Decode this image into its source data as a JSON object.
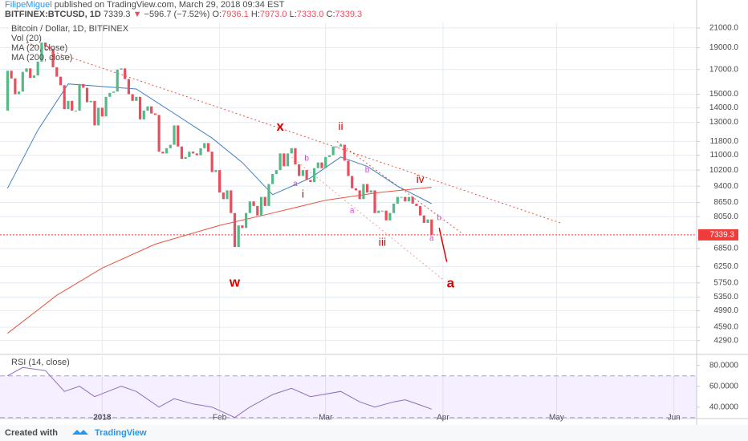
{
  "header": {
    "author": "FilipeMiguel",
    "published": "published on TradingView.com, March 29, 2018 09:34 EST",
    "symbol": "BITFINEX:BTCUSD, 1D",
    "arrow": "▼",
    "change": "−596.7 (−7.52%)",
    "ohlc": [
      {
        "label": "O:",
        "value": "7936.1"
      },
      {
        "label": "H:",
        "value": "7973.0"
      },
      {
        "label": "L:",
        "value": "7333.0"
      },
      {
        "label": "C:",
        "value": "7339.3"
      }
    ]
  },
  "legend": {
    "title": "Bitcoin / Dollar, 1D, BITFINEX",
    "volume": "Vol (20)"
  },
  "footer": {
    "created": "Created with",
    "brand": "TradingView"
  },
  "chart_data": {
    "type": "candlestick",
    "log_scale": true,
    "grid": true,
    "up_color": "#53b987",
    "down_color": "#eb4d5c",
    "xlim": [
      "2017-12-05",
      "2018-06-07"
    ],
    "xticks": [
      {
        "value": "2018-01-01",
        "label": "2018"
      },
      {
        "value": "2018-02-01",
        "label": "Feb"
      },
      {
        "value": "2018-03-01",
        "label": "Mar"
      },
      {
        "value": "2018-04-01",
        "label": "Apr"
      },
      {
        "value": "2018-05-01",
        "label": "May"
      },
      {
        "value": "2018-06-01",
        "label": "Jun"
      }
    ],
    "ylim": [
      4030,
      21600
    ],
    "yticks": [
      {
        "value": 21000,
        "label": "21000.0"
      },
      {
        "value": 19000,
        "label": "19000.0"
      },
      {
        "value": 17000,
        "label": "17000.0"
      },
      {
        "value": 15000,
        "label": "15000.0"
      },
      {
        "value": 14000,
        "label": "14000.0"
      },
      {
        "value": 13000,
        "label": "13000.0"
      },
      {
        "value": 11800,
        "label": "11800.0"
      },
      {
        "value": 11000,
        "label": "11000.0"
      },
      {
        "value": 10200,
        "label": "10200.0"
      },
      {
        "value": 9400,
        "label": "9400.0"
      },
      {
        "value": 8650,
        "label": "8650.0"
      },
      {
        "value": 8050,
        "label": "8050.0"
      },
      {
        "value": 6850,
        "label": "6850.0"
      },
      {
        "value": 6250,
        "label": "6250.0"
      },
      {
        "value": 5750,
        "label": "5750.0"
      },
      {
        "value": 5350,
        "label": "5350.0"
      },
      {
        "value": 4990,
        "label": "4990.0"
      },
      {
        "value": 4590,
        "label": "4590.0"
      },
      {
        "value": 4290,
        "label": "4290.0"
      }
    ],
    "last_price": 7339.3,
    "last_color": "#f03b3b",
    "candles": {
      "x": [
        "2017-12-07",
        "2017-12-08",
        "2017-12-09",
        "2017-12-10",
        "2017-12-11",
        "2017-12-12",
        "2017-12-13",
        "2017-12-14",
        "2017-12-15",
        "2017-12-16",
        "2017-12-17",
        "2017-12-18",
        "2017-12-19",
        "2017-12-20",
        "2017-12-21",
        "2017-12-22",
        "2017-12-23",
        "2017-12-24",
        "2017-12-25",
        "2017-12-26",
        "2017-12-27",
        "2017-12-28",
        "2017-12-29",
        "2017-12-30",
        "2017-12-31",
        "2018-01-01",
        "2018-01-02",
        "2018-01-03",
        "2018-01-04",
        "2018-01-05",
        "2018-01-06",
        "2018-01-07",
        "2018-01-08",
        "2018-01-09",
        "2018-01-10",
        "2018-01-11",
        "2018-01-12",
        "2018-01-13",
        "2018-01-14",
        "2018-01-15",
        "2018-01-16",
        "2018-01-17",
        "2018-01-18",
        "2018-01-19",
        "2018-01-20",
        "2018-01-21",
        "2018-01-22",
        "2018-01-23",
        "2018-01-24",
        "2018-01-25",
        "2018-01-26",
        "2018-01-27",
        "2018-01-28",
        "2018-01-29",
        "2018-01-30",
        "2018-01-31",
        "2018-02-01",
        "2018-02-02",
        "2018-02-03",
        "2018-02-04",
        "2018-02-05",
        "2018-02-06",
        "2018-02-07",
        "2018-02-08",
        "2018-02-09",
        "2018-02-10",
        "2018-02-11",
        "2018-02-12",
        "2018-02-13",
        "2018-02-14",
        "2018-02-15",
        "2018-02-16",
        "2018-02-17",
        "2018-02-18",
        "2018-02-19",
        "2018-02-20",
        "2018-02-21",
        "2018-02-22",
        "2018-02-23",
        "2018-02-24",
        "2018-02-25",
        "2018-02-26",
        "2018-02-27",
        "2018-02-28",
        "2018-03-01",
        "2018-03-02",
        "2018-03-03",
        "2018-03-04",
        "2018-03-05",
        "2018-03-06",
        "2018-03-07",
        "2018-03-08",
        "2018-03-09",
        "2018-03-10",
        "2018-03-11",
        "2018-03-12",
        "2018-03-13",
        "2018-03-14",
        "2018-03-15",
        "2018-03-16",
        "2018-03-17",
        "2018-03-18",
        "2018-03-19",
        "2018-03-20",
        "2018-03-21",
        "2018-03-22",
        "2018-03-23",
        "2018-03-24",
        "2018-03-25",
        "2018-03-26",
        "2018-03-27",
        "2018-03-28",
        "2018-03-29"
      ],
      "open": [
        13800,
        16900,
        16250,
        15000,
        15200,
        16800,
        17100,
        16300,
        16500,
        17700,
        19500,
        19100,
        18900,
        17200,
        16400,
        15700,
        13900,
        14500,
        13800,
        13800,
        15800,
        15500,
        14400,
        14500,
        12800,
        14000,
        13400,
        14800,
        15100,
        15200,
        17000,
        17100,
        16200,
        15000,
        14500,
        14800,
        13200,
        13800,
        14100,
        13600,
        13500,
        11200,
        11100,
        11400,
        11600,
        12800,
        11500,
        10800,
        10900,
        11200,
        11100,
        11000,
        11400,
        11700,
        11200,
        10100,
        10200,
        9100,
        8800,
        9200,
        8200,
        6900,
        7700,
        7600,
        8200,
        8700,
        8500,
        8100,
        8900,
        8500,
        9500,
        10000,
        10200,
        11100,
        10400,
        11100,
        11400,
        10500,
        9900,
        10200,
        9700,
        9600,
        10300,
        10600,
        10300,
        10900,
        11000,
        11500,
        11500,
        11600,
        10700,
        9900,
        9300,
        9200,
        8800,
        9500,
        9100,
        9200,
        8200,
        8300,
        8300,
        7900,
        8200,
        8600,
        8900,
        8900,
        8700,
        8900,
        8600,
        8500,
        8100,
        7800,
        7936.1
      ],
      "close": [
        16900,
        16250,
        15000,
        15200,
        16800,
        17100,
        16300,
        16500,
        17700,
        19500,
        19100,
        18900,
        17200,
        16400,
        15700,
        13900,
        14500,
        13800,
        13800,
        15800,
        15500,
        14400,
        14500,
        12800,
        14000,
        13400,
        14800,
        15100,
        15200,
        17000,
        17100,
        16200,
        15000,
        14500,
        14800,
        13200,
        13800,
        14100,
        13600,
        13500,
        11200,
        11100,
        11400,
        11600,
        12800,
        11500,
        10800,
        10900,
        11200,
        11100,
        11000,
        11400,
        11700,
        11200,
        10100,
        10200,
        9100,
        8800,
        9200,
        8200,
        6900,
        7700,
        7600,
        8200,
        8700,
        8500,
        8100,
        8900,
        8500,
        9500,
        10000,
        10200,
        11100,
        10400,
        11100,
        11400,
        10500,
        9900,
        10200,
        9700,
        9600,
        10300,
        10600,
        10300,
        10900,
        11000,
        11500,
        11500,
        11600,
        10700,
        9900,
        9300,
        9200,
        8800,
        9500,
        9100,
        9200,
        8200,
        8300,
        8300,
        7900,
        8200,
        8600,
        8900,
        8900,
        8700,
        8900,
        8600,
        8500,
        8100,
        7800,
        7936.1,
        7339.3
      ]
    },
    "series": [
      {
        "name": "MA (20, close)",
        "color": "#3f7fbf",
        "x": [
          "2017-12-07",
          "2017-12-15",
          "2017-12-23",
          "2018-01-01",
          "2018-01-10",
          "2018-01-20",
          "2018-01-30",
          "2018-02-07",
          "2018-02-15",
          "2018-02-25",
          "2018-03-05",
          "2018-03-12",
          "2018-03-20",
          "2018-03-29"
        ],
        "values": [
          9300,
          12500,
          15800,
          15600,
          15400,
          13600,
          12000,
          10600,
          9000,
          9800,
          10900,
          10400,
          9400,
          8600
        ]
      },
      {
        "name": "MA (200, close)",
        "color": "#e8533f",
        "x": [
          "2017-12-07",
          "2017-12-20",
          "2018-01-01",
          "2018-01-15",
          "2018-02-01",
          "2018-02-15",
          "2018-03-01",
          "2018-03-15",
          "2018-03-29"
        ],
        "values": [
          4450,
          5400,
          6200,
          7000,
          7700,
          8200,
          8750,
          9100,
          9350
        ]
      }
    ],
    "trendlines": [
      {
        "x": [
          "2017-12-12",
          "2018-05-02"
        ],
        "y": [
          19500,
          7800
        ],
        "color": "#e8533f",
        "style": "dotted"
      },
      {
        "x": [
          "2018-03-04",
          "2018-04-06"
        ],
        "y": [
          11800,
          7400
        ],
        "color": "#e8533f",
        "style": "dotted"
      },
      {
        "x": [
          "2018-02-20",
          "2018-04-01"
        ],
        "y": [
          10900,
          5850
        ],
        "color": "#f0a0a0",
        "style": "dotted"
      },
      {
        "x": [
          "2018-03-31",
          "2018-04-02"
        ],
        "y": [
          7600,
          6400
        ],
        "color": "#e00000",
        "style": "solid"
      }
    ],
    "annotations": {
      "primary": [
        {
          "text": "w",
          "x": "2018-02-05",
          "y": 5750
        },
        {
          "text": "x",
          "x": "2018-02-17",
          "y": 12700
        },
        {
          "text": "a",
          "x": "2018-04-03",
          "y": 5720
        }
      ],
      "intermediate": [
        {
          "text": "i",
          "x": "2018-02-23",
          "y": 9000
        },
        {
          "text": "ii",
          "x": "2018-03-05",
          "y": 12700
        },
        {
          "text": "iii",
          "x": "2018-03-16",
          "y": 7050
        },
        {
          "text": "iv",
          "x": "2018-03-26",
          "y": 9700
        }
      ],
      "minor": [
        {
          "text": "a",
          "x": "2018-02-21",
          "y": 9500
        },
        {
          "text": "b",
          "x": "2018-02-24",
          "y": 10800
        },
        {
          "text": "a",
          "x": "2018-03-08",
          "y": 8300
        },
        {
          "text": "b",
          "x": "2018-03-12",
          "y": 10200
        },
        {
          "text": "a",
          "x": "2018-03-29",
          "y": 7200
        },
        {
          "text": "b",
          "x": "2018-03-31",
          "y": 8000
        }
      ],
      "primary_color": "#e00000",
      "intermediate_color": "#e00000",
      "minor_color": "#e040e0"
    },
    "rsi": {
      "name": "RSI (14, close)",
      "color": "#8e6dbf",
      "band": [
        30,
        70
      ],
      "ylim": [
        29,
        89
      ],
      "yticks": [
        {
          "value": 80,
          "label": "80.0000"
        },
        {
          "value": 60,
          "label": "60.0000"
        },
        {
          "value": 40,
          "label": "40.0000"
        }
      ],
      "x": [
        "2017-12-07",
        "2017-12-11",
        "2017-12-17",
        "2017-12-22",
        "2017-12-26",
        "2017-12-30",
        "2018-01-06",
        "2018-01-10",
        "2018-01-16",
        "2018-01-20",
        "2018-01-25",
        "2018-01-30",
        "2018-02-05",
        "2018-02-09",
        "2018-02-15",
        "2018-02-20",
        "2018-02-25",
        "2018-03-05",
        "2018-03-10",
        "2018-03-14",
        "2018-03-19",
        "2018-03-22",
        "2018-03-26",
        "2018-03-29"
      ],
      "values": [
        70,
        78,
        75,
        55,
        60,
        50,
        60,
        55,
        40,
        48,
        43,
        40,
        30,
        40,
        52,
        58,
        50,
        55,
        45,
        40,
        45,
        47,
        42,
        38
      ]
    }
  }
}
